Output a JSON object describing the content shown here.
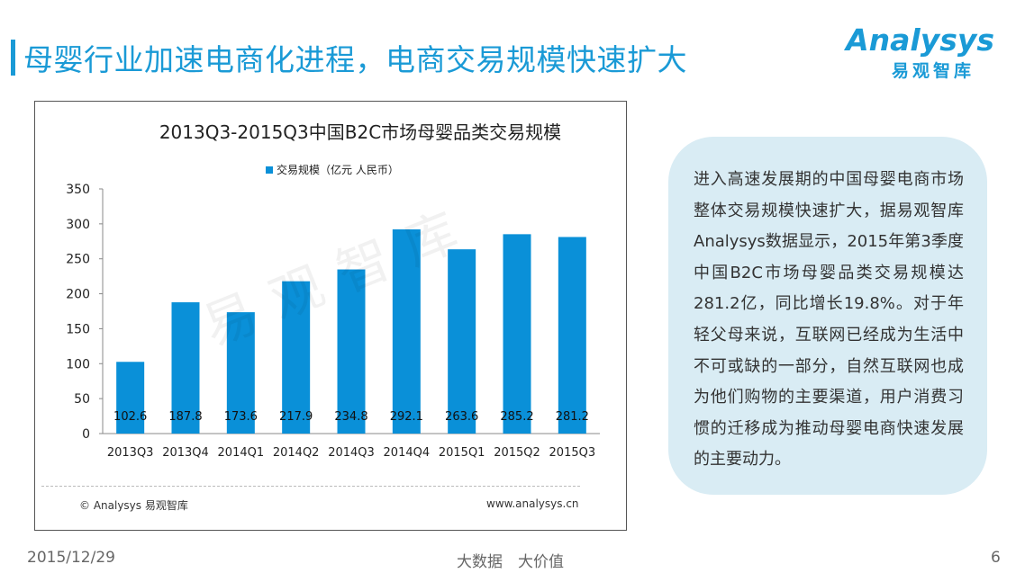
{
  "header": {
    "title": "母婴行业加速电商化进程，电商交易规模快速扩大",
    "logo_main": "Analysys",
    "logo_sub": "易观智库"
  },
  "chart_data": {
    "type": "bar",
    "title": "2013Q3-2015Q3中国B2C市场母婴品类交易规模",
    "legend": "交易规模（亿元 人民币）",
    "legend_position": "top",
    "categories": [
      "2013Q3",
      "2013Q4",
      "2014Q1",
      "2014Q2",
      "2014Q3",
      "2014Q4",
      "2015Q1",
      "2015Q2",
      "2015Q3"
    ],
    "values": [
      102.6,
      187.8,
      173.6,
      217.9,
      234.8,
      292.1,
      263.6,
      285.2,
      281.2
    ],
    "value_labels": [
      "102.6",
      "187.8",
      "173.6",
      "217.9",
      "234.8",
      "292.1",
      "263.6",
      "285.2",
      "281.2"
    ],
    "yticks": [
      "0",
      "50",
      "100",
      "150",
      "200",
      "250",
      "300",
      "350"
    ],
    "ylim": [
      0,
      350
    ],
    "grid": false,
    "bar_color": "#0a90d8",
    "watermark": "易观智库",
    "source": "© Analysys 易观智库",
    "url": "www.analysys.cn"
  },
  "callout": {
    "text": "进入高速发展期的中国母婴电商市场整体交易规模快速扩大，据易观智库Analysys数据显示，2015年第3季度中国B2C市场母婴品类交易规模达281.2亿，同比增长19.8%。对于年轻父母来说，互联网已经成为生活中不可或缺的一部分，自然互联网也成为他们购物的主要渠道，用户消费习惯的迁移成为推动母婴电商快速发展的主要动力。"
  },
  "footer": {
    "date": "2015/12/29",
    "center": "大数据　大价值",
    "page": "6"
  },
  "colors": {
    "accent": "#1a9ad6",
    "callout_bg": "#d9ecf4"
  }
}
